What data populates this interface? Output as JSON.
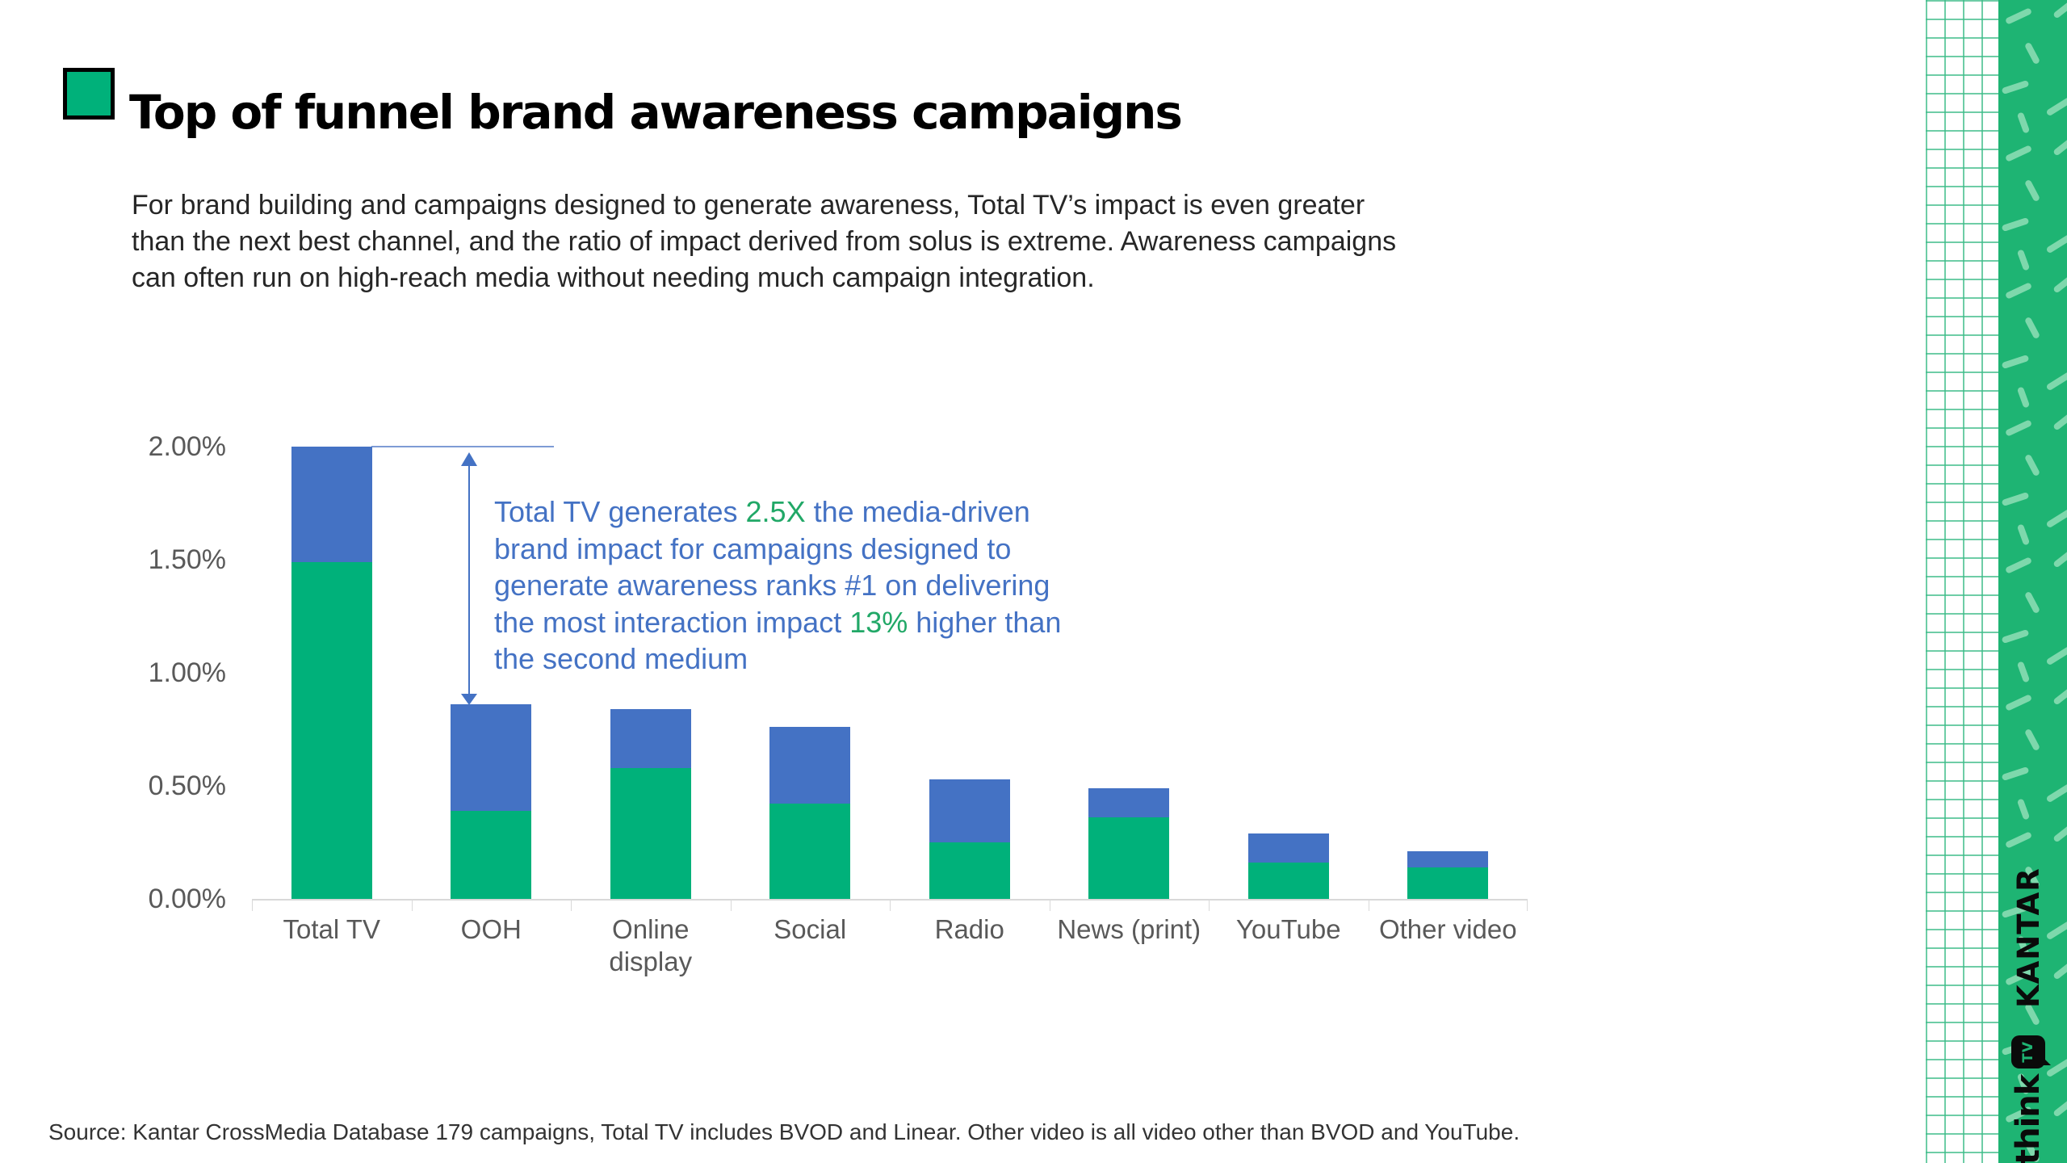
{
  "slide": {
    "title": "Top of funnel brand awareness campaigns",
    "intro_lines": [
      "For brand building and campaigns designed to generate awareness, Total TV’s impact is even greater",
      "than the next best channel, and the ratio of impact derived from solus is extreme. Awareness campaigns",
      "can often run on high-reach media without needing much campaign integration."
    ],
    "source": "Source: Kantar CrossMedia Database 179 campaigns, Total TV includes BVOD and Linear. Other video is all video other than BVOD and YouTube."
  },
  "colors": {
    "bar_green": "#00B17A",
    "bar_blue": "#4472C4",
    "annotation_blue": "#4472C4",
    "accent_green_text": "#21A867",
    "band_green": "#1EB473",
    "band_dash_green": "#7ED8AC",
    "kantar_gold": "#C9992E",
    "axis_gray": "#D9D9D9",
    "label_gray": "#595959"
  },
  "chart_data": {
    "type": "bar",
    "stacked": true,
    "title": "",
    "xlabel": "",
    "ylabel": "",
    "ylim": [
      0,
      2
    ],
    "grid": false,
    "legend": "none",
    "categories": [
      "Total TV",
      "OOH",
      "Online display",
      "Social",
      "Radio",
      "News (print)",
      "YouTube",
      "Other video"
    ],
    "series": [
      {
        "name": "bottom segment (green)",
        "color_key": "bar_green",
        "values": [
          1.49,
          0.39,
          0.58,
          0.42,
          0.25,
          0.36,
          0.16,
          0.14
        ]
      },
      {
        "name": "top segment (blue)",
        "color_key": "bar_blue",
        "values": [
          0.51,
          0.47,
          0.26,
          0.34,
          0.28,
          0.13,
          0.13,
          0.07
        ]
      }
    ],
    "totals": [
      2.0,
      0.86,
      0.84,
      0.76,
      0.53,
      0.49,
      0.29,
      0.21
    ],
    "ytick_values": [
      0,
      0.5,
      1,
      1.5,
      2
    ],
    "ytick_labels": [
      "0.00%",
      "0.50%",
      "1.00%",
      "1.50%",
      "2.00%"
    ],
    "annotation": {
      "lines": [
        [
          {
            "t": "Total TV generates ",
            "c": "blue"
          },
          {
            "t": "2.5X",
            "c": "green"
          },
          {
            "t": " the media-driven",
            "c": "blue"
          }
        ],
        [
          {
            "t": "brand impact for campaigns designed to",
            "c": "blue"
          }
        ],
        [
          {
            "t": "generate awareness ranks #1 on delivering",
            "c": "blue"
          }
        ],
        [
          {
            "t": "the most interaction impact ",
            "c": "blue"
          },
          {
            "t": "13%",
            "c": "green"
          },
          {
            "t": " higher than",
            "c": "blue"
          }
        ],
        [
          {
            "t": "the second medium",
            "c": "blue"
          }
        ]
      ]
    }
  },
  "branding": {
    "kantar": "KANTAR",
    "think": "think",
    "tv": "TV"
  }
}
